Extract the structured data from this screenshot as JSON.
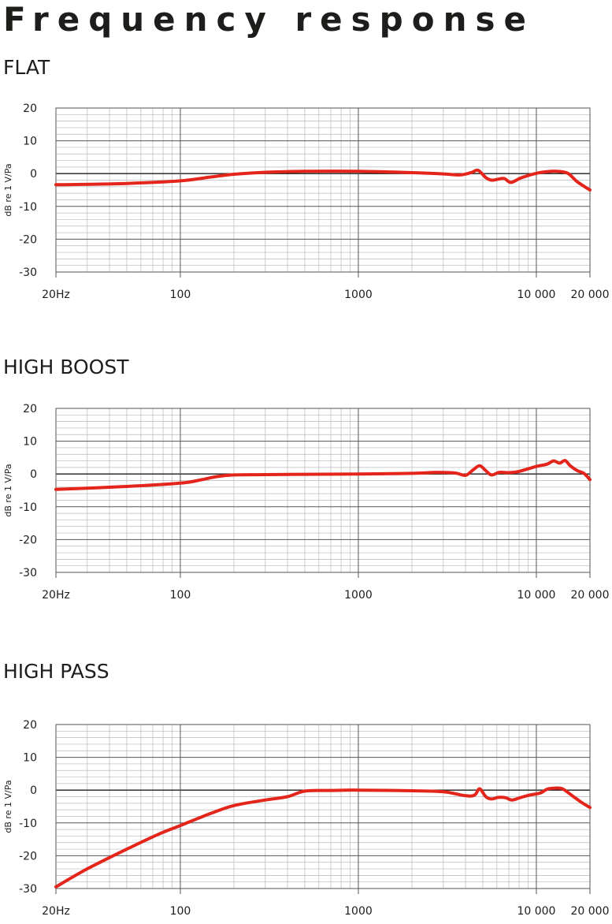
{
  "page": {
    "title": "Frequency response"
  },
  "colors": {
    "curve": "#e3251c",
    "grid_minor": "#b9b9b9",
    "grid_major": "#555555",
    "zero_line": "#1d1d1b",
    "text": "#1d1d1b"
  },
  "axis": {
    "ylabel": "dB re 1 V/Pa",
    "x_ticks": [
      {
        "value": 20,
        "label": "20Hz"
      },
      {
        "value": 100,
        "label": "100"
      },
      {
        "value": 1000,
        "label": "1000"
      },
      {
        "value": 10000,
        "label": "10 000"
      },
      {
        "value": 20000,
        "label": "20 000"
      }
    ],
    "y_ticks": [
      {
        "value": 20,
        "label": "20"
      },
      {
        "value": 10,
        "label": "10"
      },
      {
        "value": 0,
        "label": "0"
      },
      {
        "value": -10,
        "label": "-10"
      },
      {
        "value": -20,
        "label": "-20"
      },
      {
        "value": -30,
        "label": "-30"
      }
    ]
  },
  "chart_data": [
    {
      "type": "line",
      "title": "FLAT",
      "ylabel": "dB re 1 V/Pa",
      "xscale": "log",
      "xlim": [
        20,
        20000
      ],
      "ylim": [
        -30,
        20
      ],
      "grid": true,
      "series": [
        {
          "x": [
            20,
            50,
            100,
            150,
            200,
            300,
            500,
            1000,
            2000,
            3000,
            3700,
            4300,
            4700,
            5200,
            5600,
            6100,
            6600,
            7200,
            8200,
            10000,
            11500,
            13000,
            15000,
            17000,
            20000
          ],
          "y": [
            -3.4,
            -3.0,
            -2.2,
            -1.0,
            -0.2,
            0.4,
            0.7,
            0.7,
            0.3,
            -0.1,
            -0.4,
            0.3,
            1.0,
            -1.2,
            -2.0,
            -1.7,
            -1.5,
            -2.7,
            -1.3,
            0.1,
            0.6,
            0.7,
            0.1,
            -2.5,
            -5.0
          ]
        }
      ]
    },
    {
      "type": "line",
      "title": "HIGH BOOST",
      "ylabel": "dB re 1 V/Pa",
      "xscale": "log",
      "xlim": [
        20,
        20000
      ],
      "ylim": [
        -30,
        20
      ],
      "grid": true,
      "series": [
        {
          "x": [
            20,
            50,
            100,
            130,
            160,
            200,
            300,
            500,
            1000,
            2000,
            2800,
            3500,
            4000,
            4400,
            4800,
            5200,
            5600,
            6200,
            7000,
            8000,
            10000,
            11500,
            12500,
            13500,
            14500,
            15500,
            17000,
            18500,
            20000
          ],
          "y": [
            -4.7,
            -3.8,
            -2.8,
            -1.8,
            -0.8,
            -0.3,
            -0.2,
            -0.1,
            0.0,
            0.2,
            0.5,
            0.3,
            -0.4,
            1.2,
            2.5,
            1.0,
            -0.3,
            0.5,
            0.4,
            0.8,
            2.3,
            3.0,
            4.0,
            3.3,
            4.1,
            2.5,
            1.0,
            0.2,
            -1.7
          ]
        }
      ]
    },
    {
      "type": "line",
      "title": "HIGH PASS",
      "ylabel": "dB re 1 V/Pa",
      "xscale": "log",
      "xlim": [
        20,
        20000
      ],
      "ylim": [
        -30,
        20
      ],
      "grid": true,
      "series": [
        {
          "x": [
            20,
            30,
            50,
            75,
            100,
            150,
            200,
            300,
            400,
            500,
            700,
            1000,
            2000,
            3000,
            4000,
            4500,
            4800,
            5200,
            5600,
            6100,
            6700,
            7300,
            8200,
            9200,
            10500,
            11500,
            12500,
            14000,
            16000,
            18000,
            20000
          ],
          "y": [
            -29.5,
            -24.0,
            -18.0,
            -13.5,
            -10.8,
            -7.0,
            -4.7,
            -3.0,
            -2.0,
            -0.3,
            -0.1,
            0.0,
            -0.2,
            -0.5,
            -1.7,
            -1.5,
            0.4,
            -2.0,
            -2.7,
            -2.2,
            -2.3,
            -3.0,
            -2.2,
            -1.5,
            -0.9,
            0.3,
            0.6,
            0.4,
            -1.8,
            -3.8,
            -5.3
          ]
        }
      ]
    }
  ]
}
